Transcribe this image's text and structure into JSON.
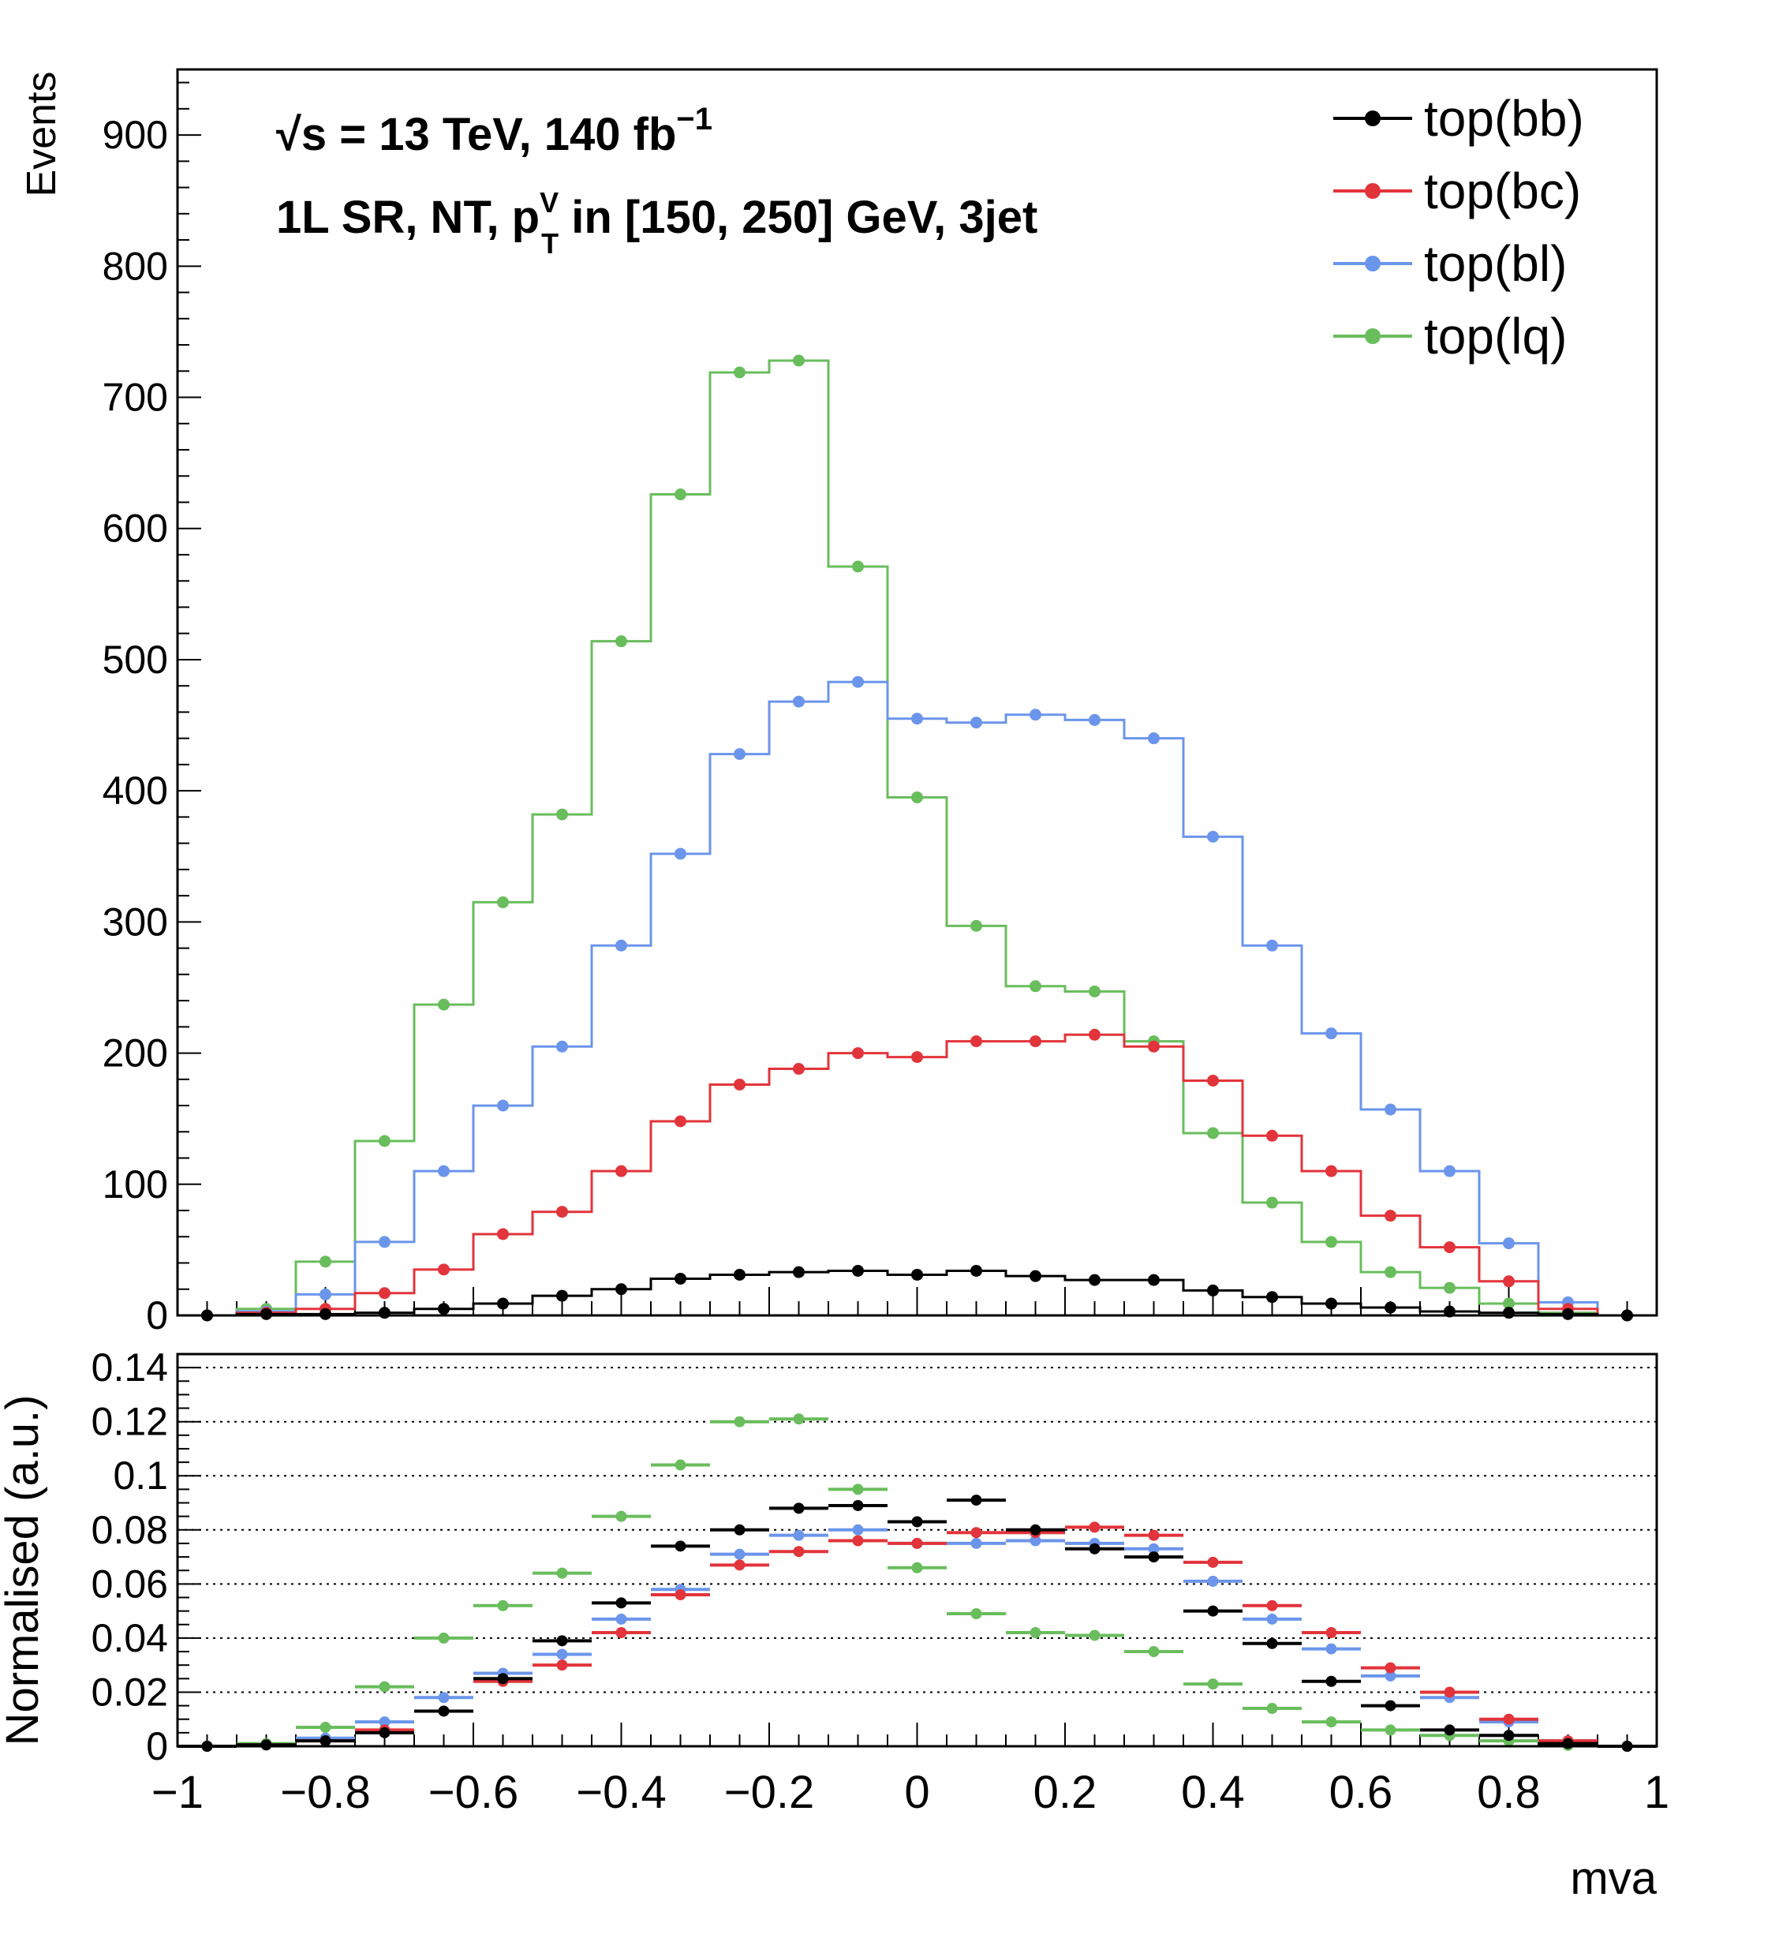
{
  "chart_data": [
    {
      "type": "histogram",
      "panel": "upper",
      "ylabel": "Events",
      "xlim": [
        -1,
        1
      ],
      "ylim": [
        0,
        950
      ],
      "yticks": [
        0,
        100,
        200,
        300,
        400,
        500,
        600,
        700,
        800,
        900
      ],
      "bin_edges": [
        -1.0,
        -0.92,
        -0.84,
        -0.76,
        -0.68,
        -0.6,
        -0.52,
        -0.44,
        -0.36,
        -0.28,
        -0.2,
        -0.12,
        -0.04,
        0.04,
        0.12,
        0.2,
        0.28,
        0.36,
        0.44,
        0.52,
        0.6,
        0.68,
        0.76,
        0.84,
        0.92,
        1.0
      ],
      "annotation": {
        "sqrt_s": "√s",
        "line1": " = 13 TeV,  140 fb",
        "line1_sup": "−1",
        "line2_a": "1L SR, NT, p",
        "line2_sup": "V",
        "line2_sub": "T",
        "line2_b": " in [150, 250] GeV, 3jet"
      },
      "legend": {
        "position": "top-right"
      },
      "series": [
        {
          "name": "top(bb)",
          "color": "#000000",
          "values": [
            0,
            1,
            1,
            2,
            5,
            9,
            15,
            20,
            28,
            31,
            33,
            34,
            31,
            34,
            30,
            27,
            27,
            19,
            14,
            9,
            6,
            3,
            2,
            1,
            0
          ]
        },
        {
          "name": "top(bc)",
          "color": "#e2343b",
          "values": [
            0,
            2,
            5,
            17,
            35,
            62,
            79,
            110,
            148,
            176,
            188,
            200,
            197,
            209,
            209,
            214,
            205,
            179,
            137,
            110,
            76,
            52,
            26,
            5,
            0
          ]
        },
        {
          "name": "top(bl)",
          "color": "#6b95eb",
          "values": [
            0,
            3,
            16,
            56,
            110,
            160,
            205,
            282,
            352,
            428,
            468,
            483,
            455,
            452,
            458,
            454,
            440,
            365,
            282,
            215,
            157,
            110,
            55,
            10,
            0
          ]
        },
        {
          "name": "top(lq)",
          "color": "#69bd5c",
          "values": [
            0,
            5,
            41,
            133,
            237,
            315,
            382,
            514,
            626,
            719,
            728,
            571,
            395,
            297,
            251,
            247,
            209,
            139,
            86,
            56,
            33,
            21,
            9,
            2,
            0
          ]
        }
      ]
    },
    {
      "type": "scatter",
      "panel": "lower",
      "xlabel": "mva",
      "ylabel": "Normalised (a.u.)",
      "xlim": [
        -1,
        1
      ],
      "ylim": [
        0,
        0.145
      ],
      "yticks": [
        0,
        0.02,
        0.04,
        0.06,
        0.08,
        0.1,
        0.12,
        0.14
      ],
      "ytick_labels": [
        "0",
        "0.02",
        "0.04",
        "0.06",
        "0.08",
        "0.1",
        "0.12",
        "0.14"
      ],
      "xticks": [
        -1,
        -0.8,
        -0.6,
        -0.4,
        -0.2,
        0,
        0.2,
        0.4,
        0.6,
        0.8,
        1
      ],
      "xtick_labels": [
        "−1",
        "−0.8",
        "−0.6",
        "−0.4",
        "−0.2",
        "0",
        "0.2",
        "0.4",
        "0.6",
        "0.8",
        "1"
      ],
      "grid": "horizontal-dotted",
      "series": [
        {
          "name": "top(bb)",
          "color": "#000000",
          "values": [
            0,
            0.0005,
            0.002,
            0.005,
            0.013,
            0.025,
            0.039,
            0.053,
            0.074,
            0.08,
            0.088,
            0.089,
            0.083,
            0.091,
            0.08,
            0.073,
            0.07,
            0.05,
            0.038,
            0.024,
            0.015,
            0.006,
            0.004,
            0.001,
            0
          ]
        },
        {
          "name": "top(bc)",
          "color": "#e2343b",
          "values": [
            0,
            0.0005,
            0.002,
            0.006,
            0.013,
            0.024,
            0.03,
            0.042,
            0.056,
            0.067,
            0.072,
            0.076,
            0.075,
            0.079,
            0.079,
            0.081,
            0.078,
            0.068,
            0.052,
            0.042,
            0.029,
            0.02,
            0.01,
            0.002,
            0
          ]
        },
        {
          "name": "top(bl)",
          "color": "#6b95eb",
          "values": [
            0,
            0.0005,
            0.003,
            0.009,
            0.018,
            0.027,
            0.034,
            0.047,
            0.058,
            0.071,
            0.078,
            0.08,
            0.075,
            0.075,
            0.076,
            0.075,
            0.073,
            0.061,
            0.047,
            0.036,
            0.026,
            0.018,
            0.009,
            0.002,
            0
          ]
        },
        {
          "name": "top(lq)",
          "color": "#69bd5c",
          "values": [
            0,
            0.001,
            0.007,
            0.022,
            0.04,
            0.052,
            0.064,
            0.085,
            0.104,
            0.12,
            0.121,
            0.095,
            0.066,
            0.049,
            0.042,
            0.041,
            0.035,
            0.023,
            0.014,
            0.009,
            0.006,
            0.004,
            0.002,
            0.0003,
            0
          ]
        }
      ]
    }
  ]
}
